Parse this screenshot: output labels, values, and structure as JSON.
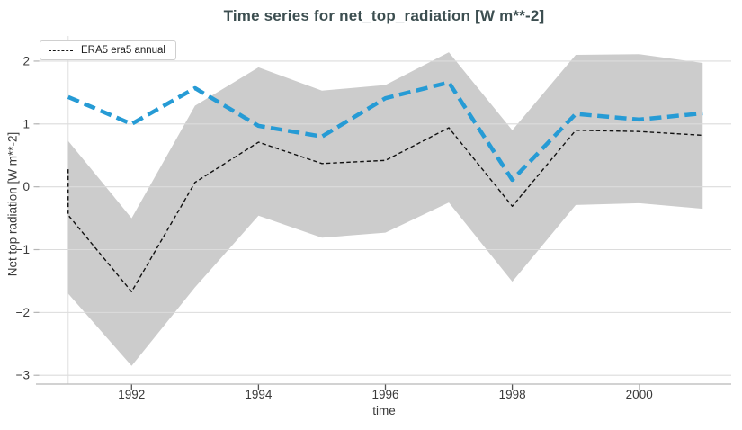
{
  "figure": {
    "title": "Time series for net_top_radiation [W m**-2]",
    "xlabel": "time",
    "ylabel": "Net top radiation [W m**-2]",
    "title_color": "#3c4e50",
    "legend": {
      "position": "top-left",
      "items": [
        {
          "label": "ERA5 era5 annual",
          "line": "black-dashed"
        }
      ]
    }
  },
  "chart_data": {
    "type": "line",
    "title": "Time series for net_top_radiation [W m**-2]",
    "xlabel": "time",
    "ylabel": "Net top radiation [W m**-2]",
    "xlim": [
      1990.55,
      2001.45
    ],
    "ylim": [
      -3.14,
      2.4
    ],
    "grid": "horizontal",
    "legend_position": "top-left",
    "background": "#ffffff",
    "grid_color": "#dcdcdc",
    "spine_color": "#b8b8b8",
    "tick_color": "#555555",
    "tick_label_color": "#3a3a3a",
    "x": [
      1991,
      1992,
      1993,
      1994,
      1995,
      1996,
      1997,
      1998,
      1999,
      2000,
      2001
    ],
    "xticks": [
      {
        "value": 1992,
        "label": "1992"
      },
      {
        "value": 1994,
        "label": "1994"
      },
      {
        "value": 1996,
        "label": "1996"
      },
      {
        "value": 1998,
        "label": "1998"
      },
      {
        "value": 2000,
        "label": "2000"
      }
    ],
    "yticks": [
      {
        "value": -3,
        "label": "−3"
      },
      {
        "value": -2,
        "label": "−2"
      },
      {
        "value": -1,
        "label": "−1"
      },
      {
        "value": 0,
        "label": "0"
      },
      {
        "value": 1,
        "label": "1"
      },
      {
        "value": 2,
        "label": "2"
      }
    ],
    "series": [
      {
        "name": "ERA5 era5 annual",
        "style": "dashed",
        "color": "#111111",
        "width": 1.4,
        "dash": [
          4.5,
          3
        ],
        "in_legend": true,
        "points": [
          [
            1991,
            0.28
          ],
          [
            1991,
            -0.45
          ],
          [
            1992,
            -1.67
          ],
          [
            1993,
            0.07
          ],
          [
            1994,
            0.71
          ],
          [
            1995,
            0.37
          ],
          [
            1996,
            0.42
          ],
          [
            1997,
            0.94
          ],
          [
            1998,
            -0.31
          ],
          [
            1999,
            0.9
          ],
          [
            2000,
            0.88
          ],
          [
            2001,
            0.82
          ]
        ]
      },
      {
        "name": "blue-dashed-series",
        "style": "dashed",
        "color": "#269bd5",
        "width": 4.5,
        "dash": [
          13,
          6.5
        ],
        "in_legend": false,
        "points": [
          [
            1991,
            1.43
          ],
          [
            1992,
            1.0
          ],
          [
            1993,
            1.57
          ],
          [
            1994,
            0.97
          ],
          [
            1995,
            0.8
          ],
          [
            1996,
            1.41
          ],
          [
            1997,
            1.66
          ],
          [
            1998,
            0.11
          ],
          [
            1999,
            1.16
          ],
          [
            2000,
            1.07
          ],
          [
            2001,
            1.17
          ]
        ]
      }
    ],
    "band": {
      "name": "min-max-envelope",
      "color": "#cccccc",
      "x": [
        1991,
        1992,
        1993,
        1994,
        1995,
        1996,
        1997,
        1998,
        1999,
        2000,
        2001
      ],
      "upper": [
        0.73,
        -0.5,
        1.29,
        1.9,
        1.53,
        1.62,
        2.14,
        0.9,
        2.1,
        2.11,
        1.97
      ],
      "lower": [
        -1.7,
        -2.85,
        -1.6,
        -0.46,
        -0.81,
        -0.73,
        -0.25,
        -1.51,
        -0.29,
        -0.26,
        -0.35
      ]
    }
  }
}
